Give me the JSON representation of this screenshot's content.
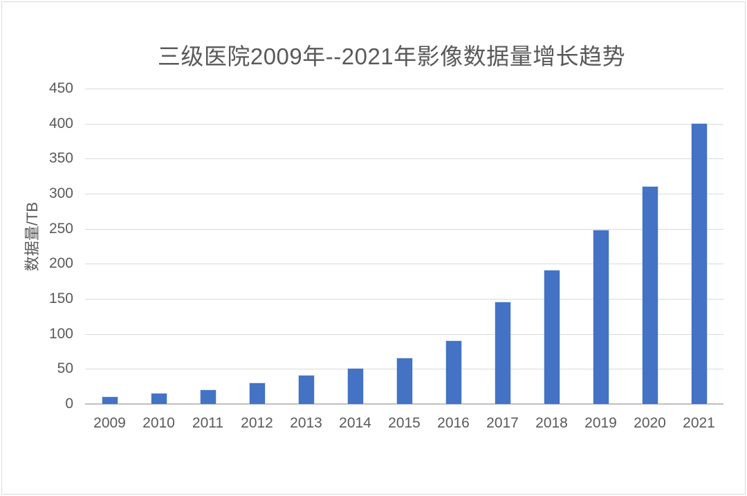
{
  "title": "三级医院2009年--2021年影像数据量增长趋势",
  "colors": {
    "bar": "#4472c4",
    "text": "#595959",
    "gridline": "#d9d9d9",
    "axis_line": "#bfbfbf",
    "frame_border": "#d9d9d9"
  },
  "chart_data": {
    "type": "bar",
    "title": "三级医院2009年--2021年影像数据量增长趋势",
    "categories": [
      "2009",
      "2010",
      "2011",
      "2012",
      "2013",
      "2014",
      "2015",
      "2016",
      "2017",
      "2018",
      "2019",
      "2020",
      "2021"
    ],
    "values": [
      10,
      15,
      20,
      30,
      40,
      50,
      65,
      90,
      145,
      190,
      248,
      310,
      400
    ],
    "xlabel": "",
    "ylabel": "数据量/TB",
    "ylim": [
      0,
      450
    ],
    "yticks": [
      0,
      50,
      100,
      150,
      200,
      250,
      300,
      350,
      400,
      450
    ],
    "grid": true,
    "legend_position": "none"
  }
}
